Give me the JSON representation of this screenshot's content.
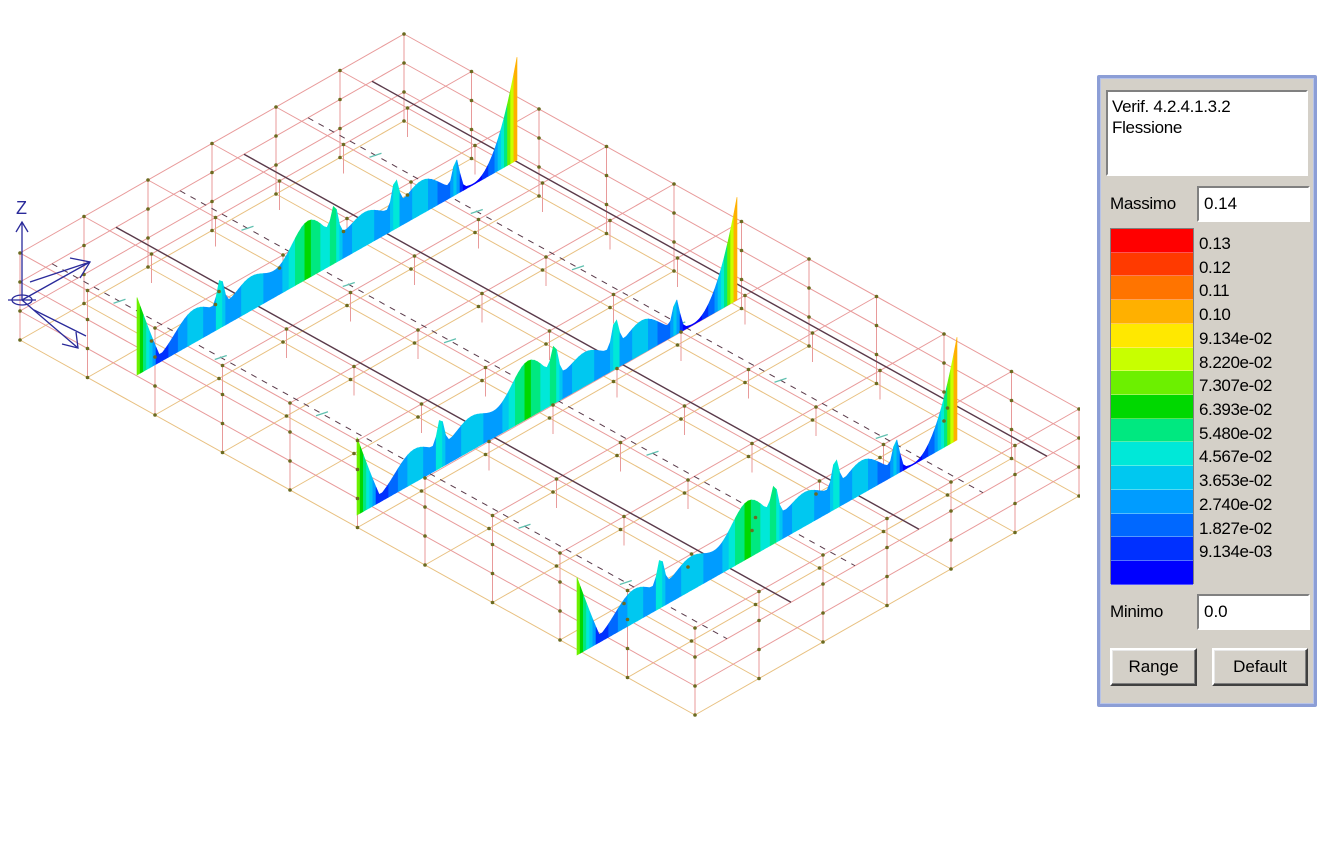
{
  "legend": {
    "title_line1": "Verif. 4.2.4.1.3.2",
    "title_line2": "Flessione",
    "max_label": "Massimo",
    "max_value": "0.14",
    "min_label": "Minimo",
    "min_value": "0.0",
    "range_button": "Range",
    "default_button": "Default",
    "scale": [
      {
        "label": "0.13",
        "color": "#ff0000"
      },
      {
        "label": "0.12",
        "color": "#ff3a00"
      },
      {
        "label": "0.11",
        "color": "#ff7400"
      },
      {
        "label": "0.10",
        "color": "#ffb000"
      },
      {
        "label": "9.134e-02",
        "color": "#ffe800"
      },
      {
        "label": "8.220e-02",
        "color": "#c8ff00"
      },
      {
        "label": "7.307e-02",
        "color": "#6cf000"
      },
      {
        "label": "6.393e-02",
        "color": "#00d800"
      },
      {
        "label": "5.480e-02",
        "color": "#00e880"
      },
      {
        "label": "4.567e-02",
        "color": "#00e8d8"
      },
      {
        "label": "3.653e-02",
        "color": "#00c8f0"
      },
      {
        "label": "2.740e-02",
        "color": "#009cff"
      },
      {
        "label": "1.827e-02",
        "color": "#0068ff"
      },
      {
        "label": "9.134e-03",
        "color": "#0030ff"
      },
      {
        "label": "",
        "color": "#0000ff"
      }
    ]
  },
  "axis": {
    "z_label": "Z"
  },
  "colors": {
    "grid_red": "#e89a9a",
    "grid_orange": "#e8c080",
    "node": "#6b6b20",
    "beam": "#5a3a4a",
    "arrow": "#60c0b0"
  }
}
